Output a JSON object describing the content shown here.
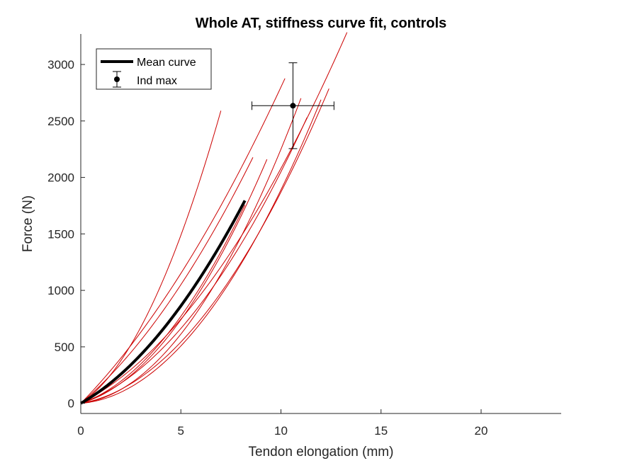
{
  "chart_data": {
    "type": "line",
    "title": "Whole AT, stiffness curve fit, controls",
    "xlabel": "Tendon elongation (mm)",
    "ylabel": "Force (N)",
    "xlim": [
      0,
      24
    ],
    "ylim": [
      -90,
      3270
    ],
    "xticks": [
      0,
      5,
      10,
      15,
      20
    ],
    "yticks": [
      0,
      500,
      1000,
      1500,
      2000,
      2500,
      3000
    ],
    "xtick_labels": [
      "0",
      "5",
      "10",
      "15",
      "20"
    ],
    "ytick_labels": [
      "0",
      "500",
      "1000",
      "1500",
      "2000",
      "2500",
      "3000"
    ],
    "grid": false,
    "legend_position": "top-left",
    "legend": [
      {
        "label": "Mean curve",
        "style": "thick-line",
        "color": "#000000"
      },
      {
        "label": "Ind max",
        "style": "point-errorbar",
        "color": "#000000"
      }
    ],
    "individual_curves_color": "#cc0000",
    "mean_curve_color": "#000000",
    "individual_curves": [
      {
        "coef": [
          116,
          36.3
        ],
        "xmax": 7.0
      },
      {
        "coef": [
          180,
          10.0
        ],
        "xmax": 10.2
      },
      {
        "coef": [
          150,
          12.0
        ],
        "xmax": 8.6
      },
      {
        "coef": [
          60,
          18.8
        ],
        "xmax": 8.2
      },
      {
        "coef": [
          20,
          20.5
        ],
        "xmax": 11.0
      },
      {
        "coef": [
          14,
          17.5
        ],
        "xmax": 12.0
      },
      {
        "coef": [
          90,
          11.8
        ],
        "xmax": 13.3
      },
      {
        "coef": [
          30,
          15.7
        ],
        "xmax": 12.4
      },
      {
        "coef": [
          60,
          14.5
        ],
        "xmax": 11.3
      },
      {
        "coef": [
          50,
          19.6
        ],
        "xmax": 9.3
      }
    ],
    "mean_curve": {
      "coef": [
        100,
        14.5
      ],
      "xmax": 8.2
    },
    "ind_max": {
      "x": 10.6,
      "y": 2635,
      "x_err": 2.05,
      "y_err": 380
    }
  }
}
